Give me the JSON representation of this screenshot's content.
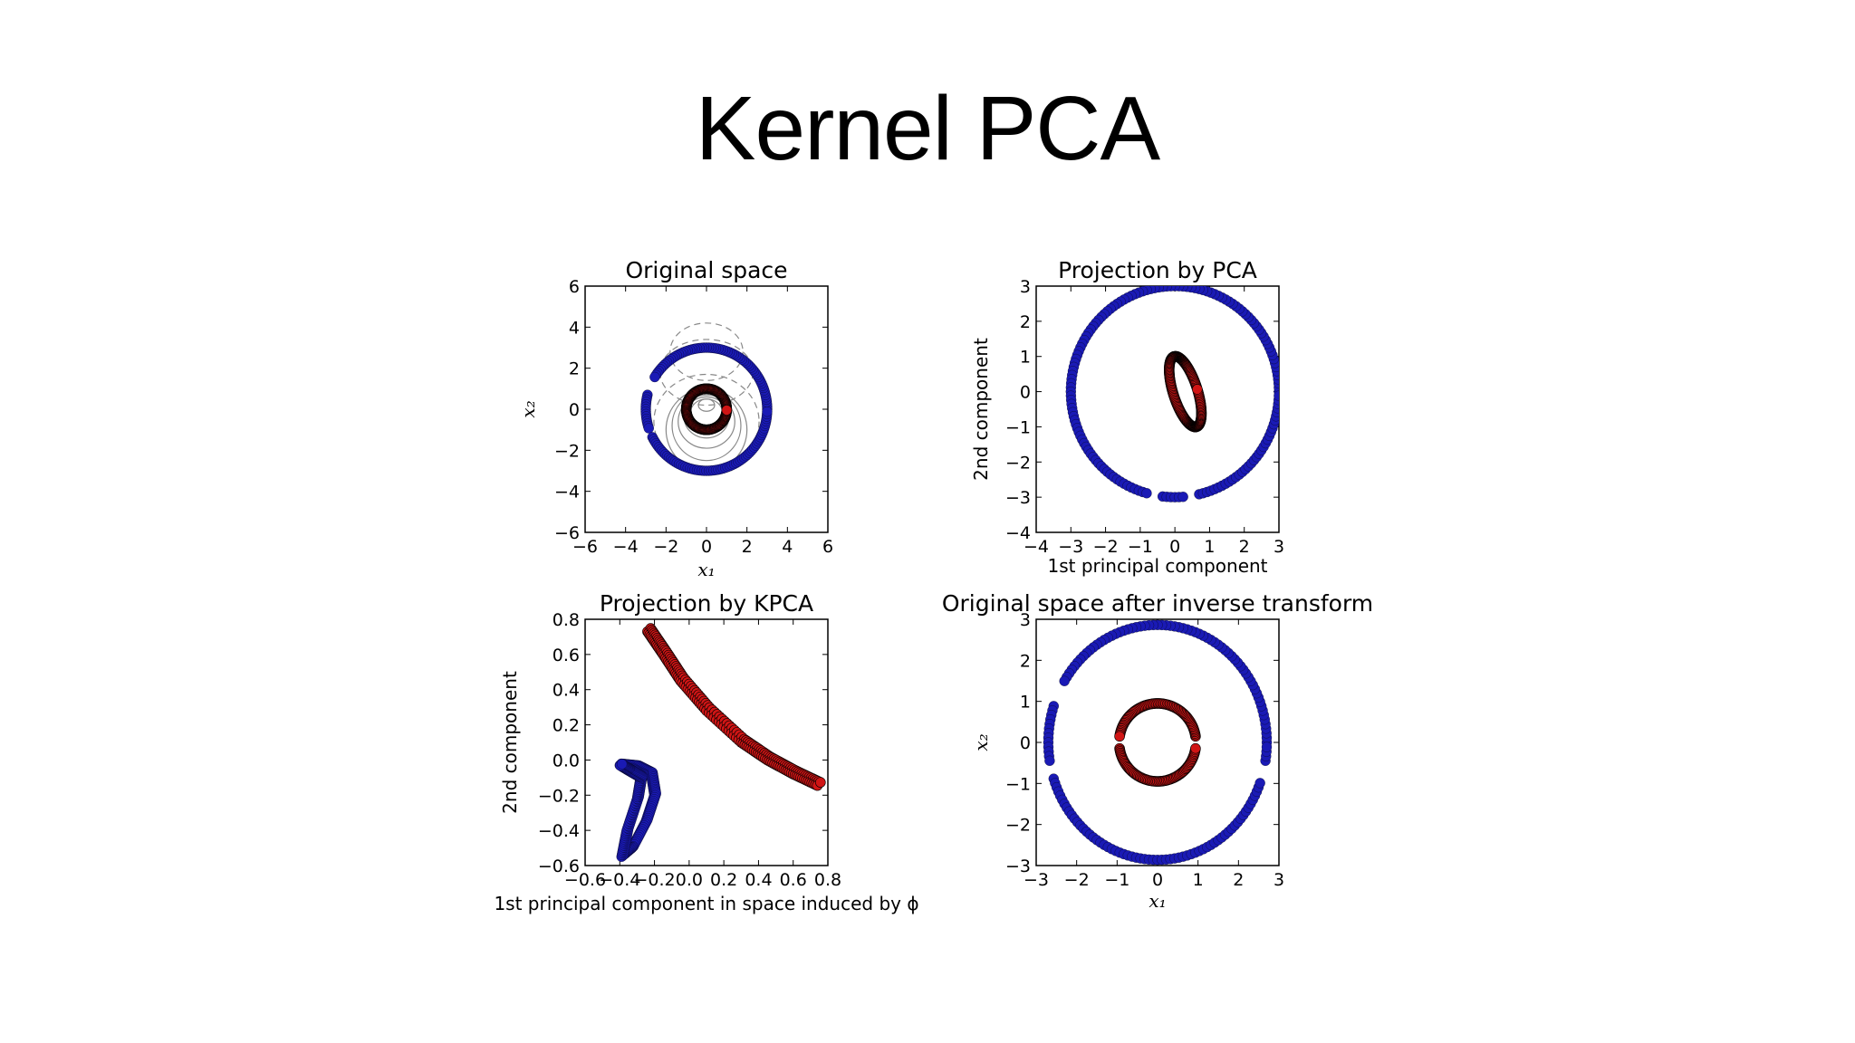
{
  "slide": {
    "title": "Kernel PCA"
  },
  "colors": {
    "class_outer": "#1a1ab5",
    "class_inner": "#d01515",
    "contour": "#888888"
  },
  "chart_data": [
    {
      "type": "scatter",
      "title": "Original space",
      "xlabel": "x₁",
      "ylabel": "x₂",
      "xlim": [
        -6,
        6
      ],
      "ylim": [
        -6,
        6
      ],
      "xticks": [
        "−6",
        "−4",
        "−2",
        "0",
        "2",
        "4",
        "6"
      ],
      "yticks": [
        "−6",
        "−4",
        "−2",
        "0",
        "2",
        "4",
        "6"
      ],
      "contours": [
        {
          "rx": 0.4,
          "ry": 0.3,
          "cy": 0.2,
          "dashed": false
        },
        {
          "rx": 0.8,
          "ry": 0.7,
          "cy": -0.2,
          "dashed": false
        },
        {
          "rx": 1.1,
          "ry": 1.0,
          "cy": -0.4,
          "dashed": false
        },
        {
          "rx": 1.4,
          "ry": 1.3,
          "cy": -0.6,
          "dashed": false
        },
        {
          "rx": 1.7,
          "ry": 1.7,
          "cy": -0.8,
          "dashed": false
        },
        {
          "rx": 2.0,
          "ry": 2.0,
          "cy": -1.0,
          "dashed": false
        },
        {
          "rx": 2.6,
          "ry": 2.3,
          "cy": -0.6,
          "dashed": true
        },
        {
          "rx": 2.3,
          "ry": 1.6,
          "cy": 1.8,
          "dashed": true
        },
        {
          "rx": 1.8,
          "ry": 1.4,
          "cy": 2.8,
          "dashed": true
        }
      ],
      "series": [
        {
          "class": "outer",
          "shape": "circle",
          "radius": 3.0,
          "cx": 0,
          "cy": 0,
          "sx": 1,
          "sy": 1,
          "gaps": [
            [
              150,
              165
            ],
            [
              200,
              205
            ]
          ]
        },
        {
          "class": "inner",
          "shape": "circle",
          "radius": 1.0,
          "cx": 0,
          "cy": 0,
          "sx": 1,
          "sy": 1,
          "gaps": []
        }
      ]
    },
    {
      "type": "scatter",
      "title": "Projection by PCA",
      "xlabel": "1st principal component",
      "ylabel": "2nd component",
      "xlim": [
        -4,
        3
      ],
      "ylim": [
        -4,
        3
      ],
      "xticks": [
        "−4",
        "−3",
        "−2",
        "−1",
        "0",
        "1",
        "2",
        "3"
      ],
      "yticks": [
        "−4",
        "−3",
        "−2",
        "−1",
        "0",
        "1",
        "2",
        "3"
      ],
      "series": [
        {
          "class": "outer",
          "shape": "circle",
          "radius": 3.0,
          "cx": 0,
          "cy": 0,
          "sx": 1,
          "sy": 1,
          "gaps": [
            [
              255,
              262
            ],
            [
              275,
              282
            ]
          ]
        },
        {
          "class": "inner",
          "shape": "ellipse",
          "radius": 1.0,
          "cx": 0.3,
          "cy": 0,
          "sx": 0.35,
          "sy": 1.05,
          "rotate": 18,
          "gaps": []
        }
      ]
    },
    {
      "type": "scatter",
      "title": "Projection by KPCA",
      "xlabel": "1st principal component in space induced by ϕ",
      "ylabel": "2nd component",
      "xlim": [
        -0.6,
        0.8
      ],
      "ylim": [
        -0.6,
        0.8
      ],
      "xticks": [
        "−0.6",
        "−0.4",
        "−0.2",
        "0.0",
        "0.2",
        "0.4",
        "0.6",
        "0.8"
      ],
      "yticks": [
        "−0.6",
        "−0.4",
        "−0.2",
        "0.0",
        "0.2",
        "0.4",
        "0.6",
        "0.8"
      ],
      "series": [
        {
          "class": "inner",
          "shape": "curve",
          "points": [
            [
              -0.24,
              0.73
            ],
            [
              -0.15,
              0.6
            ],
            [
              -0.05,
              0.45
            ],
            [
              0.1,
              0.28
            ],
            [
              0.3,
              0.1
            ],
            [
              0.45,
              0.0
            ],
            [
              0.6,
              -0.08
            ],
            [
              0.75,
              -0.15
            ]
          ],
          "band": 0.03
        },
        {
          "class": "outer",
          "shape": "loop",
          "points": [
            [
              -0.4,
              -0.03
            ],
            [
              -0.3,
              -0.04
            ],
            [
              -0.22,
              -0.08
            ],
            [
              -0.2,
              -0.2
            ],
            [
              -0.25,
              -0.35
            ],
            [
              -0.33,
              -0.5
            ],
            [
              -0.39,
              -0.55
            ],
            [
              -0.36,
              -0.4
            ],
            [
              -0.3,
              -0.22
            ],
            [
              -0.28,
              -0.1
            ],
            [
              -0.35,
              -0.06
            ],
            [
              -0.4,
              -0.03
            ]
          ],
          "band": 0.015
        }
      ]
    },
    {
      "type": "scatter",
      "title": "Original space after inverse transform",
      "xlabel": "x₁",
      "ylabel": "x₂",
      "xlim": [
        -3,
        3
      ],
      "ylim": [
        -3,
        3
      ],
      "xticks": [
        "−3",
        "−2",
        "−1",
        "0",
        "1",
        "2",
        "3"
      ],
      "yticks": [
        "−3",
        "−2",
        "−1",
        "0",
        "1",
        "2",
        "3"
      ],
      "series": [
        {
          "class": "outer",
          "shape": "circle",
          "radius": 2.7,
          "cx": 0,
          "cy": 0,
          "sx": 1.0,
          "sy": 1.06,
          "gaps": [
            [
              150,
              160
            ],
            [
              190,
              196
            ],
            [
              340,
              350
            ]
          ]
        },
        {
          "class": "inner",
          "shape": "circle",
          "radius": 0.95,
          "cx": 0,
          "cy": 0,
          "sx": 1,
          "sy": 1,
          "gaps": [
            [
              172,
              188
            ],
            [
              352,
              8
            ]
          ]
        }
      ]
    }
  ]
}
